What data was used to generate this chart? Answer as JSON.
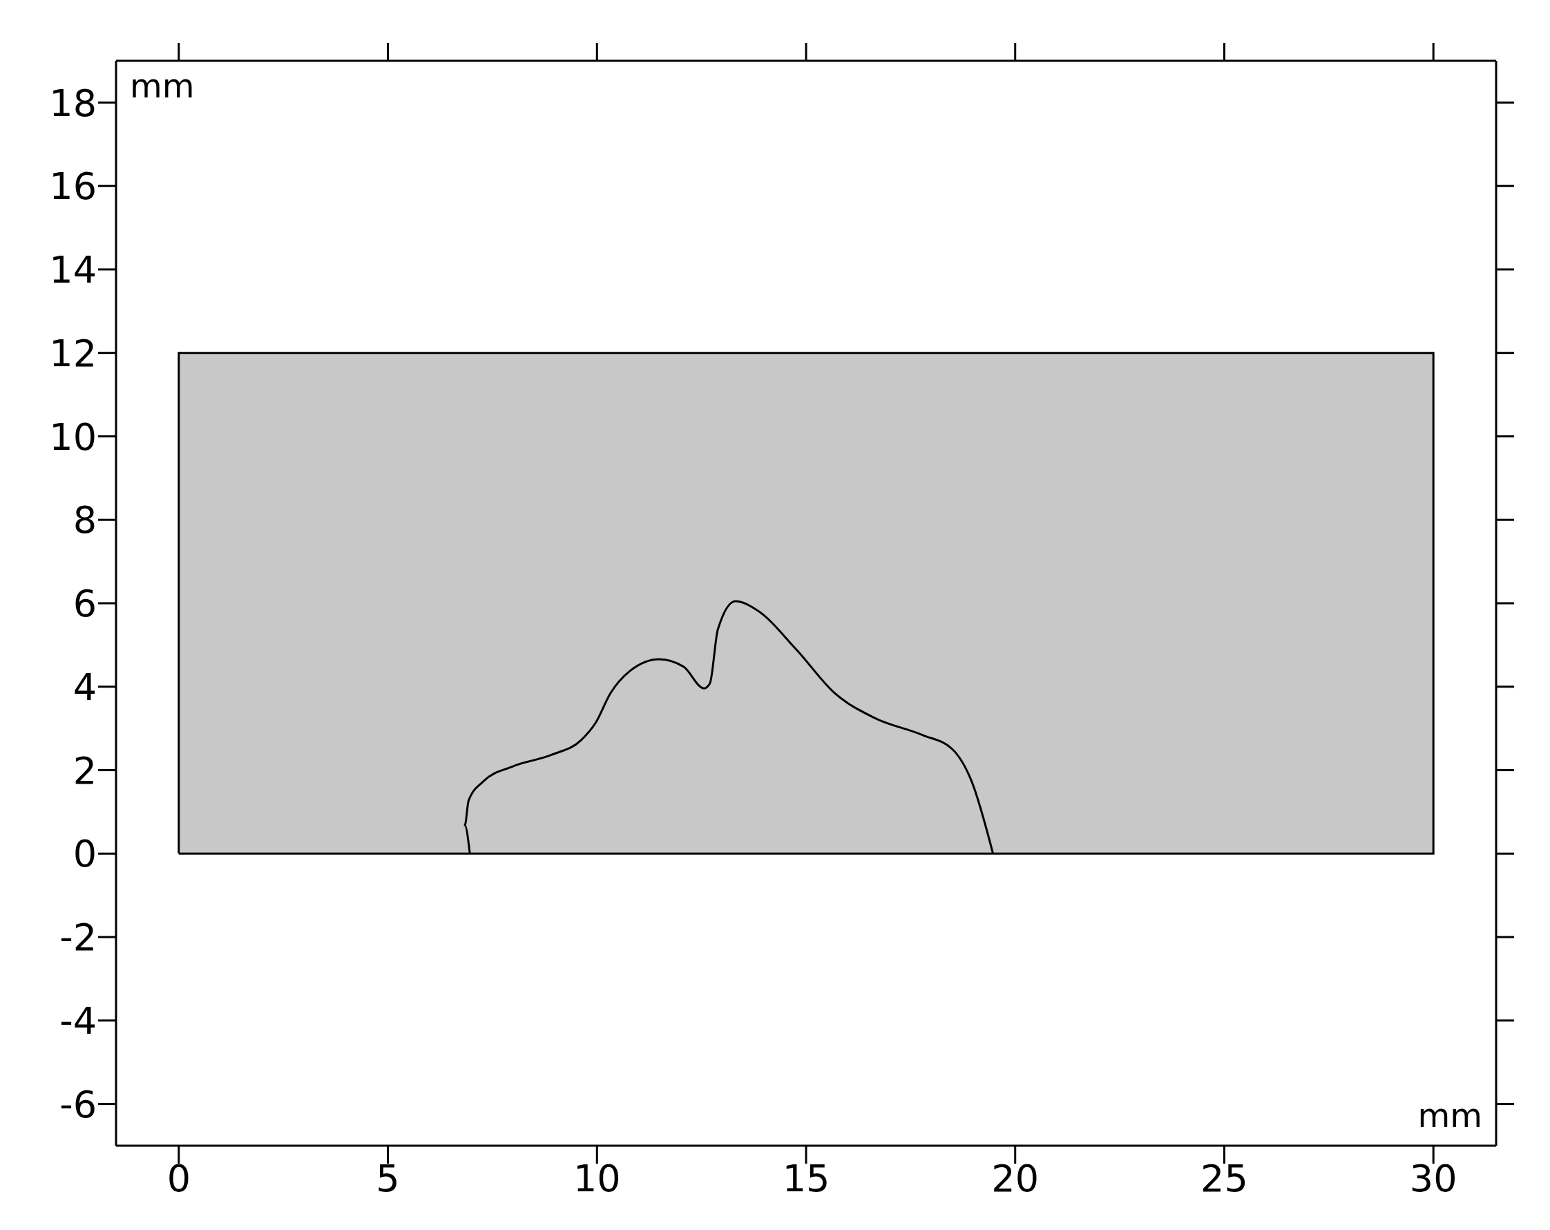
{
  "chart_data": {
    "type": "area",
    "xlabel": "mm",
    "ylabel": "mm",
    "xlim": [
      -1.5,
      31.5
    ],
    "ylim": [
      -7,
      19
    ],
    "xticks": [
      0,
      5,
      10,
      15,
      20,
      25,
      30
    ],
    "yticks": [
      -6,
      -4,
      -2,
      0,
      2,
      4,
      6,
      8,
      10,
      12,
      14,
      16,
      18
    ],
    "series": [
      {
        "color": "#c8c8c8",
        "x": [
          0,
          0,
          30,
          30,
          0
        ],
        "values": [
          0,
          12,
          12,
          0,
          0
        ]
      },
      {
        "type": "line",
        "color": "#000000",
        "x": [
          6.96,
          6.84,
          6.93,
          7.28,
          7.99,
          8.92,
          9.62,
          9.97,
          10.32,
          10.79,
          11.49,
          12.07,
          12.56,
          12.7,
          12.89,
          13.31,
          13.82,
          14.76,
          15.69,
          16.62,
          17.79,
          18.49,
          18.96,
          19.47
        ],
        "values": [
          0,
          0.68,
          1.27,
          1.73,
          2.09,
          2.37,
          2.72,
          3.14,
          3.84,
          4.38,
          4.66,
          4.48,
          3.96,
          4.08,
          5.37,
          6.05,
          5.84,
          4.9,
          3.84,
          3.26,
          2.84,
          2.51,
          1.73,
          0
        ]
      }
    ]
  }
}
